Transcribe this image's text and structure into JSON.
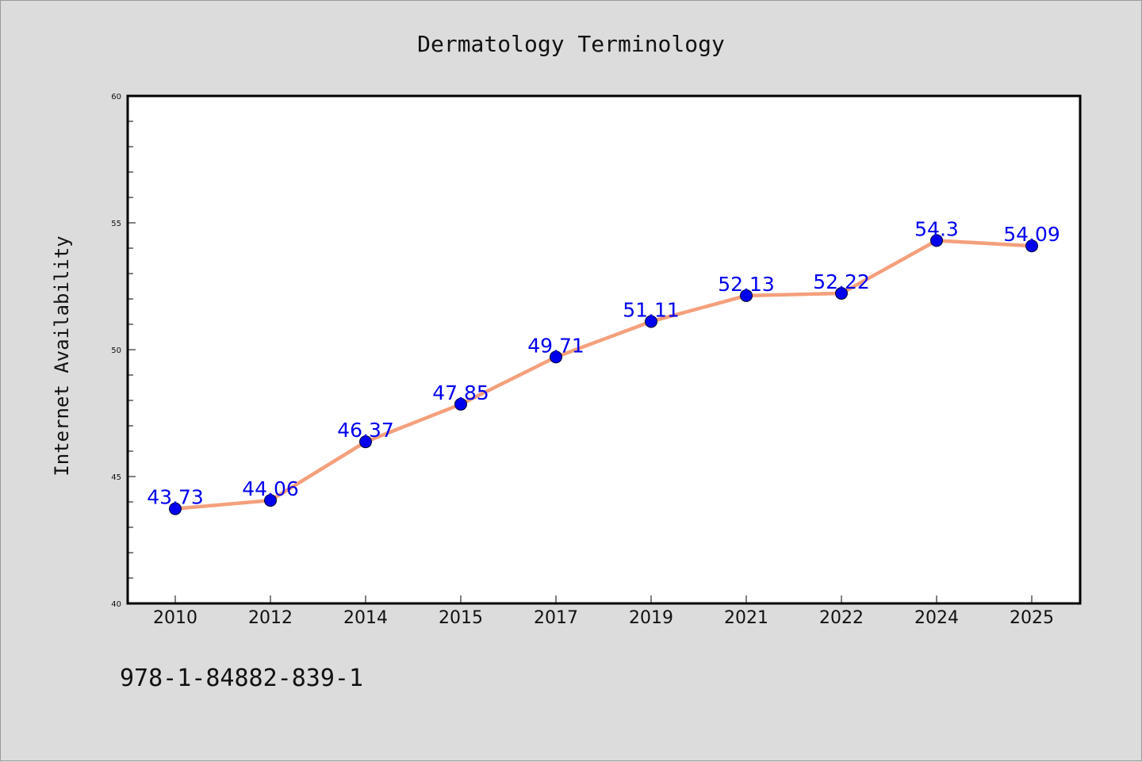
{
  "chart_data": {
    "type": "line",
    "title": "Dermatology Terminology",
    "xlabel": "",
    "ylabel": "Internet Availability",
    "categories": [
      "2010",
      "2012",
      "2014",
      "2015",
      "2017",
      "2019",
      "2021",
      "2022",
      "2024",
      "2025"
    ],
    "series": [
      {
        "values": [
          43.73,
          44.06,
          46.37,
          47.85,
          49.71,
          51.11,
          52.13,
          52.22,
          54.3,
          54.09
        ],
        "data_labels": [
          "43.73",
          "44.06",
          "46.37",
          "47.85",
          "49.71",
          "51.11",
          "52.13",
          "52.22",
          "54.3",
          "54.09"
        ]
      }
    ],
    "ylim": [
      40,
      60
    ],
    "yticks": [
      40,
      45,
      50,
      55,
      60
    ],
    "grid": false,
    "legend": "none"
  },
  "footer_text": "978-1-84882-839-1",
  "colors": {
    "background": "#dcdcdc",
    "plot_area": "#ffffff",
    "line": "#f4a07c",
    "marker": "#0000ee",
    "data_label": "#0000ee"
  }
}
